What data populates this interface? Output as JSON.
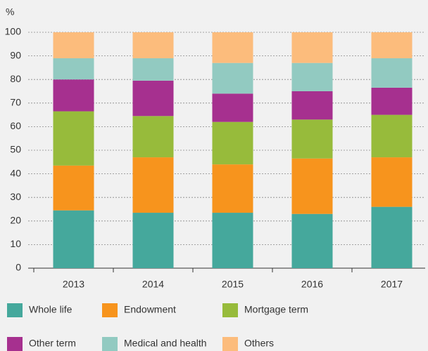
{
  "chart_data": {
    "type": "stacked_bar",
    "y_label": "%",
    "categories": [
      "2013",
      "2014",
      "2015",
      "2016",
      "2017"
    ],
    "series": [
      {
        "name": "Whole life",
        "color": "#45a89c",
        "values": [
          24.5,
          23.5,
          23.5,
          23,
          26
        ]
      },
      {
        "name": "Endowment",
        "color": "#f7941d",
        "values": [
          19,
          23.5,
          20.5,
          23.5,
          21
        ]
      },
      {
        "name": "Mortgage term",
        "color": "#97bb3b",
        "values": [
          23,
          17.5,
          18,
          16.5,
          18
        ]
      },
      {
        "name": "Other term",
        "color": "#a6308f",
        "values": [
          13.5,
          15,
          12,
          12,
          11.5
        ]
      },
      {
        "name": "Medical and health",
        "color": "#92cac1",
        "values": [
          9,
          9.5,
          13,
          12,
          12.5
        ]
      },
      {
        "name": "Others",
        "color": "#fcbc7c",
        "values": [
          11,
          11,
          13,
          13,
          11
        ]
      }
    ],
    "ylim": [
      0,
      100
    ],
    "yticks": [
      0,
      10,
      20,
      30,
      40,
      50,
      60,
      70,
      80,
      90,
      100
    ],
    "grid": true
  }
}
